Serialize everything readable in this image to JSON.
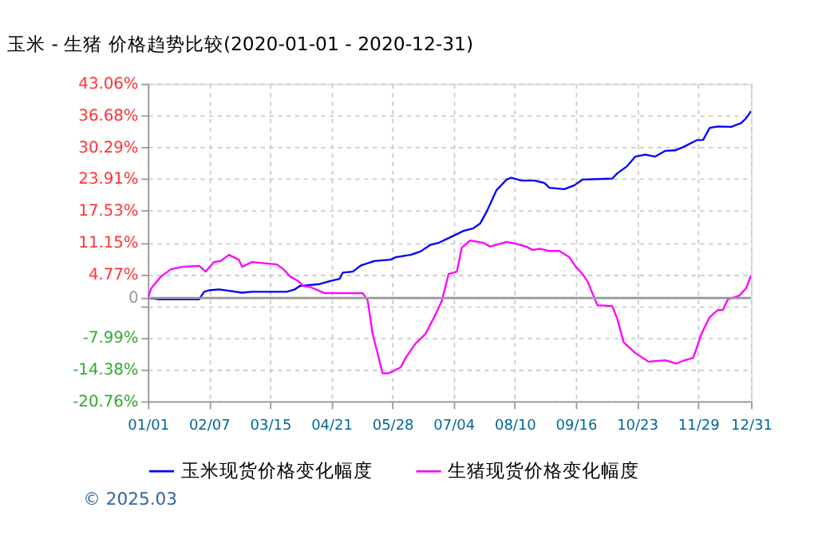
{
  "chart_data": {
    "type": "line",
    "title": "玉米 - 生猪 价格趋势比较(2020-01-01 - 2020-12-31)",
    "series": [
      {
        "name": "玉米现货价格变化幅度",
        "color": "#0000ff",
        "x": [
          "2020-01-01",
          "2020-01-08",
          "2020-02-01",
          "2020-02-04",
          "2020-02-07",
          "2020-02-13",
          "2020-02-19",
          "2020-02-27",
          "2020-03-04",
          "2020-03-25",
          "2020-03-30",
          "2020-04-02",
          "2020-04-14",
          "2020-04-20",
          "2020-04-26",
          "2020-04-28",
          "2020-05-04",
          "2020-05-09",
          "2020-05-17",
          "2020-05-27",
          "2020-05-30",
          "2020-06-08",
          "2020-06-14",
          "2020-06-20",
          "2020-06-25",
          "2020-07-01",
          "2020-07-10",
          "2020-07-16",
          "2020-07-20",
          "2020-07-24",
          "2020-07-30",
          "2020-08-05",
          "2020-08-08",
          "2020-08-14",
          "2020-08-22",
          "2020-08-28",
          "2020-08-31",
          "2020-09-09",
          "2020-09-15",
          "2020-09-20",
          "2020-10-08",
          "2020-10-11",
          "2020-10-17",
          "2020-10-22",
          "2020-10-28",
          "2020-11-03",
          "2020-11-09",
          "2020-11-15",
          "2020-11-20",
          "2020-11-28",
          "2020-12-02",
          "2020-12-06",
          "2020-12-11",
          "2020-12-19",
          "2020-12-25",
          "2020-12-28",
          "2020-12-31"
        ],
        "values": [
          0,
          -0.29,
          -0.29,
          1.25,
          1.54,
          1.73,
          1.44,
          1.06,
          1.25,
          1.25,
          1.73,
          2.41,
          2.79,
          3.37,
          3.85,
          5.1,
          5.3,
          6.55,
          7.42,
          7.7,
          8.19,
          8.67,
          9.34,
          10.69,
          11.08,
          12.04,
          13.48,
          14.0,
          14.93,
          17.33,
          21.67,
          23.78,
          24.17,
          23.59,
          23.59,
          23.11,
          22.15,
          21.86,
          22.63,
          23.78,
          23.98,
          25.04,
          26.48,
          28.41,
          28.79,
          28.41,
          29.56,
          29.66,
          30.33,
          31.68,
          31.78,
          34.18,
          34.47,
          34.38,
          35.15,
          36.11,
          37.56
        ]
      },
      {
        "name": "生猪现货价格变化幅度",
        "color": "#ff00ff",
        "x": [
          "2020-01-01",
          "2020-01-03",
          "2020-01-09",
          "2020-01-15",
          "2020-01-22",
          "2020-02-01",
          "2020-02-05",
          "2020-02-10",
          "2020-02-14",
          "2020-02-19",
          "2020-02-25",
          "2020-02-27",
          "2020-03-04",
          "2020-03-10",
          "2020-03-19",
          "2020-03-23",
          "2020-03-27",
          "2020-04-01",
          "2020-04-04",
          "2020-04-08",
          "2020-04-17",
          "2020-05-10",
          "2020-05-13",
          "2020-05-16",
          "2020-05-22",
          "2020-05-26",
          "2020-06-02",
          "2020-06-05",
          "2020-06-11",
          "2020-06-17",
          "2020-06-23",
          "2020-06-27",
          "2020-07-01",
          "2020-07-06",
          "2020-07-09",
          "2020-07-14",
          "2020-07-22",
          "2020-07-26",
          "2020-08-05",
          "2020-08-11",
          "2020-08-17",
          "2020-08-21",
          "2020-08-25",
          "2020-08-31",
          "2020-09-06",
          "2020-09-12",
          "2020-09-16",
          "2020-09-20",
          "2020-09-23",
          "2020-09-26",
          "2020-09-29",
          "2020-10-08",
          "2020-10-11",
          "2020-10-15",
          "2020-10-22",
          "2020-10-30",
          "2020-11-09",
          "2020-11-16",
          "2020-11-20",
          "2020-11-26",
          "2020-12-01",
          "2020-12-06",
          "2020-12-11",
          "2020-12-14",
          "2020-12-17",
          "2020-12-24",
          "2020-12-28",
          "2020-12-31"
        ],
        "values": [
          0,
          1.93,
          4.33,
          5.78,
          6.26,
          6.45,
          5.3,
          7.22,
          7.42,
          8.67,
          7.7,
          6.26,
          7.22,
          7.03,
          6.74,
          5.78,
          4.33,
          3.37,
          2.41,
          2.22,
          0.96,
          0.96,
          -0.48,
          -7.22,
          -15.12,
          -15.12,
          -13.96,
          -12.04,
          -9.15,
          -7.22,
          -3.37,
          -0.48,
          4.82,
          5.3,
          10.11,
          11.56,
          11.08,
          10.31,
          11.27,
          10.88,
          10.31,
          9.63,
          9.92,
          9.44,
          9.44,
          8.19,
          6.26,
          4.82,
          3.37,
          0.96,
          -1.44,
          -1.64,
          -4.14,
          -8.96,
          -11.08,
          -12.81,
          -12.52,
          -13.19,
          -12.62,
          -12.04,
          -7.22,
          -3.85,
          -2.41,
          -2.41,
          -0.29,
          0.48,
          1.93,
          4.53
        ]
      }
    ],
    "xlim": [
      "2020-01-01",
      "2020-12-31"
    ],
    "xticks": [
      {
        "value": "2020-01-01",
        "label": "01/01"
      },
      {
        "value": "2020-02-07",
        "label": "02/07"
      },
      {
        "value": "2020-03-15",
        "label": "03/15"
      },
      {
        "value": "2020-04-21",
        "label": "04/21"
      },
      {
        "value": "2020-05-28",
        "label": "05/28"
      },
      {
        "value": "2020-07-04",
        "label": "07/04"
      },
      {
        "value": "2020-08-10",
        "label": "08/10"
      },
      {
        "value": "2020-09-16",
        "label": "09/16"
      },
      {
        "value": "2020-10-23",
        "label": "10/23"
      },
      {
        "value": "2020-11-29",
        "label": "11/29"
      },
      {
        "value": "2020-12-31",
        "label": "12/31"
      }
    ],
    "ylim": [
      -20.76,
      43.06
    ],
    "yticks": [
      {
        "value": -20.76,
        "label": "-20.76%"
      },
      {
        "value": -14.38,
        "label": "-14.38%"
      },
      {
        "value": -7.99,
        "label": "-7.99%"
      },
      {
        "value": -1.61,
        "label": null
      },
      0,
      {
        "value": 4.77,
        "label": "4.77%"
      },
      {
        "value": 11.15,
        "label": "11.15%"
      },
      {
        "value": 17.53,
        "label": "17.53%"
      },
      {
        "value": 23.91,
        "label": "23.91%"
      },
      {
        "value": 30.29,
        "label": "30.29%"
      },
      {
        "value": 36.68,
        "label": "36.68%"
      },
      {
        "value": 43.06,
        "label": "43.06%"
      }
    ],
    "ref_lines": [
      {
        "axis": "y",
        "value": 0,
        "color": "#999999",
        "line_style": "solid"
      }
    ],
    "grid": true,
    "legend": "bottom",
    "annotations": [
      "© 2025.03"
    ]
  }
}
